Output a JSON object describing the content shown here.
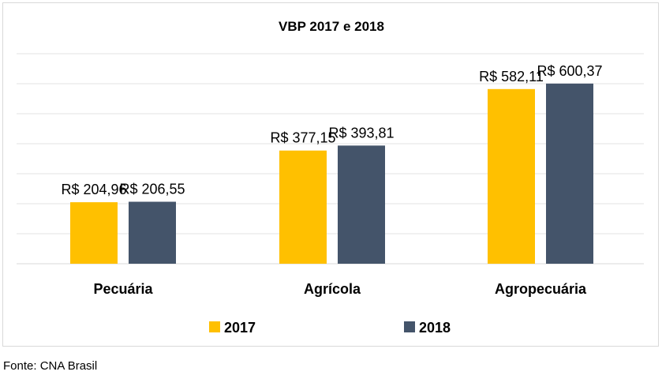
{
  "chart_data": {
    "type": "bar",
    "title": "VBP 2017 e 2018",
    "categories": [
      "Pecuária",
      "Agrícola",
      "Agropecuária"
    ],
    "series": [
      {
        "name": "2017",
        "color": "#FFC000",
        "values": [
          204.96,
          377.15,
          582.11
        ],
        "labels": [
          "R$ 204,96",
          "R$ 377,15",
          "R$ 582,11"
        ]
      },
      {
        "name": "2018",
        "color": "#44546A",
        "values": [
          206.55,
          393.81,
          600.37
        ],
        "labels": [
          "R$ 206,55",
          "R$ 393,81",
          "R$ 600,37"
        ]
      }
    ],
    "ylim": [
      0,
      700
    ],
    "ytick_step": 100,
    "grid": true,
    "legend": "bottom",
    "xlabel": "",
    "ylabel": ""
  },
  "source": "Fonte: CNA Brasil"
}
